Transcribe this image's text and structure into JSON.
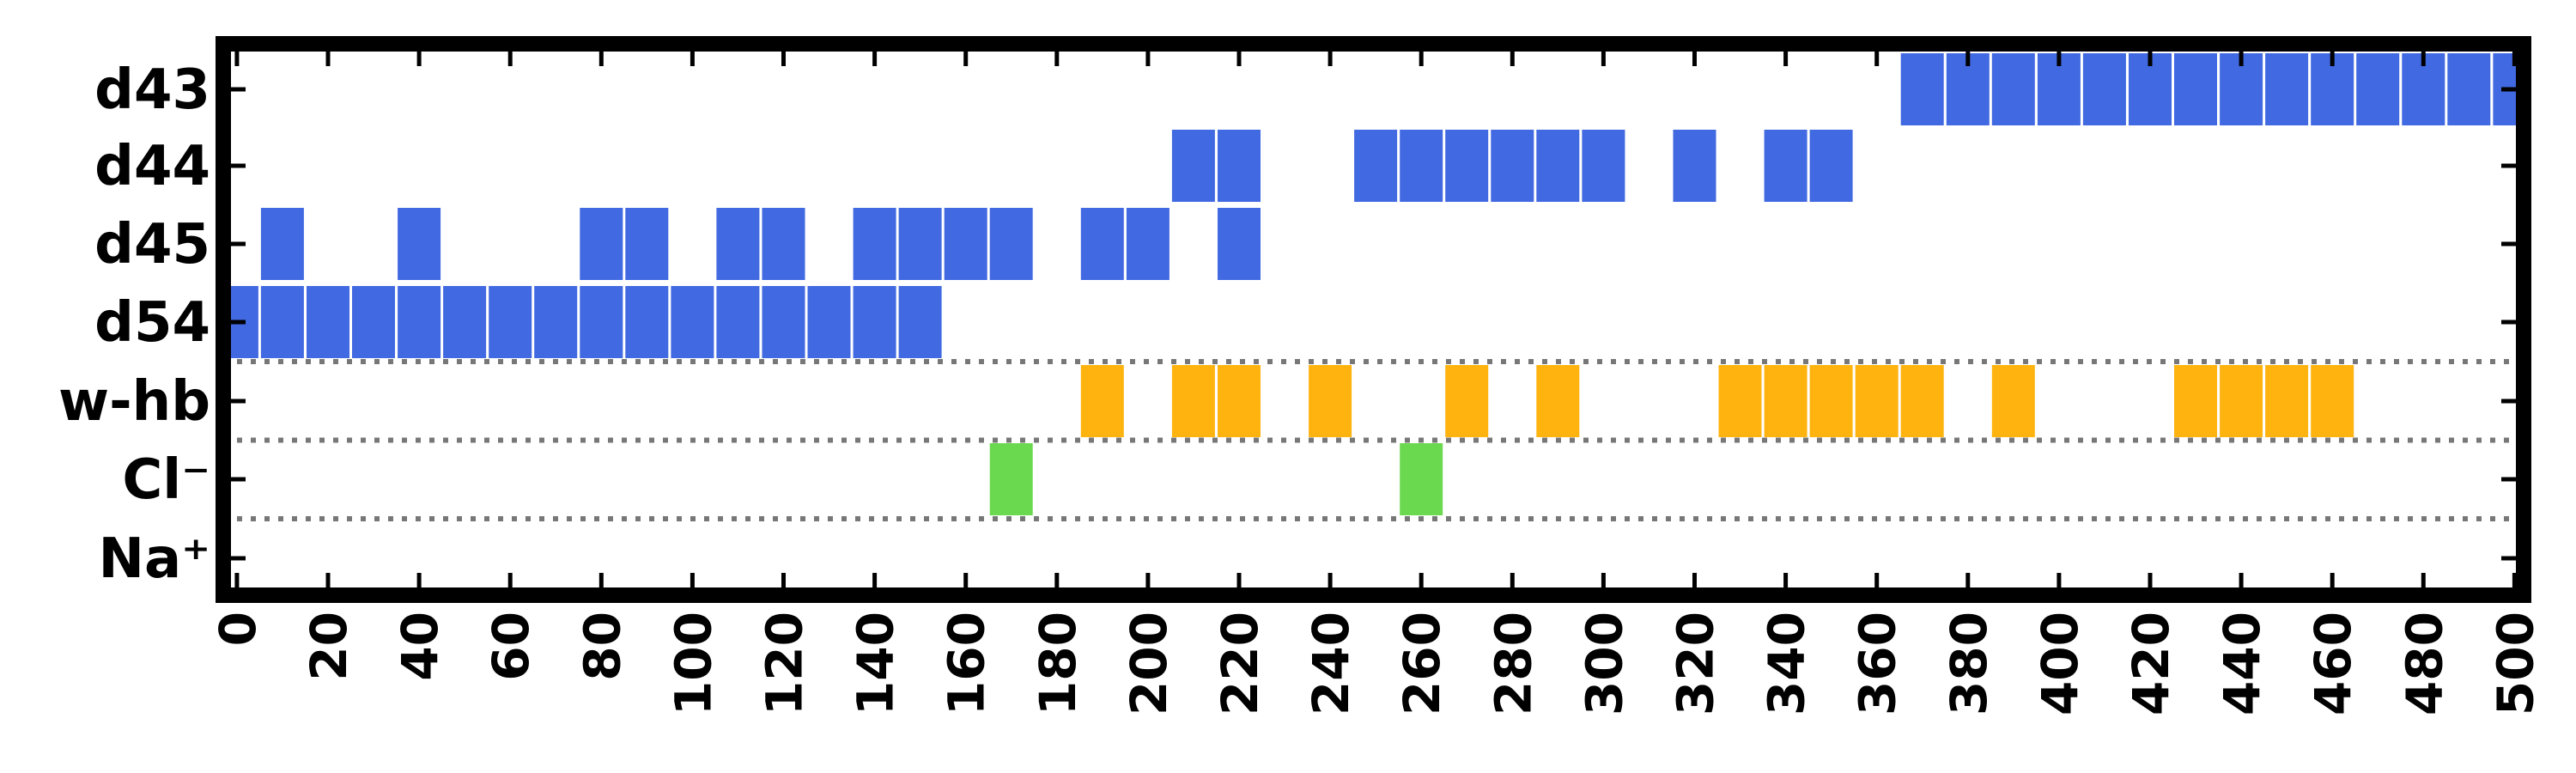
{
  "chart_data": {
    "type": "heatmap",
    "title": "",
    "xlabel": "",
    "ylabel": "",
    "xlim": [
      -3,
      502
    ],
    "x_ticks": [
      0,
      20,
      40,
      60,
      80,
      100,
      120,
      140,
      160,
      180,
      200,
      220,
      240,
      260,
      280,
      300,
      320,
      340,
      360,
      380,
      400,
      420,
      440,
      460,
      480,
      500
    ],
    "x_tick_labels": [
      "0",
      "20",
      "40",
      "60",
      "80",
      "100",
      "120",
      "140",
      "160",
      "180",
      "200",
      "220",
      "240",
      "260",
      "280",
      "300",
      "320",
      "340",
      "360",
      "380",
      "400",
      "420",
      "440",
      "460",
      "480",
      "500"
    ],
    "y_labels": [
      "d43",
      "d44",
      "d45",
      "d54",
      "w-hb",
      "Cl⁻",
      "Na⁺"
    ],
    "bin_width": 10,
    "separators_after": [
      "d54",
      "w-hb",
      "Cl⁻"
    ],
    "separator_style": "dotted gray",
    "grid": false,
    "legend": "none",
    "series": [
      {
        "row": "d43",
        "color": "#4169e1",
        "x": [
          370,
          380,
          390,
          400,
          410,
          420,
          430,
          440,
          450,
          460,
          470,
          480,
          490,
          500
        ]
      },
      {
        "row": "d44",
        "color": "#4169e1",
        "x": [
          210,
          220,
          250,
          260,
          270,
          280,
          290,
          300,
          320,
          340,
          350
        ]
      },
      {
        "row": "d45",
        "color": "#4169e1",
        "x": [
          10,
          40,
          80,
          90,
          110,
          120,
          140,
          150,
          160,
          170,
          190,
          200,
          220
        ]
      },
      {
        "row": "d54",
        "color": "#4169e1",
        "x": [
          0,
          10,
          20,
          30,
          40,
          50,
          60,
          70,
          80,
          90,
          100,
          110,
          120,
          130,
          140,
          150
        ]
      },
      {
        "row": "w-hb",
        "color": "#ffb30f",
        "x": [
          190,
          210,
          220,
          240,
          270,
          290,
          330,
          340,
          350,
          360,
          370,
          390,
          430,
          440,
          450,
          460
        ]
      },
      {
        "row": "Cl⁻",
        "color": "#6bd94f",
        "x": [
          170,
          260
        ]
      },
      {
        "row": "Na⁺",
        "color": "#6bd94f",
        "x": []
      }
    ]
  }
}
